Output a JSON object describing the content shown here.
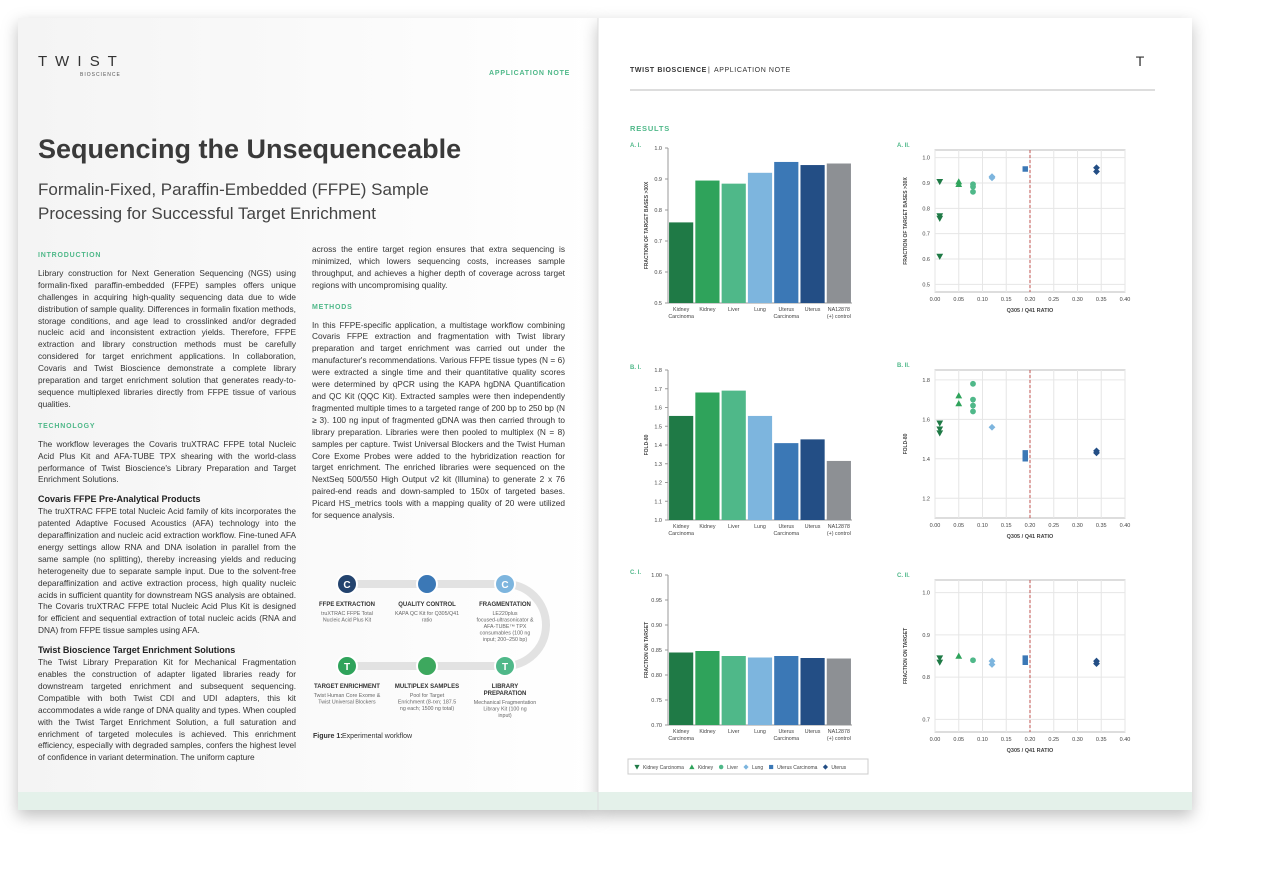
{
  "left_page": {
    "logo": "T W I S T",
    "logo_sub": "BIOSCIENCE",
    "label": "APPLICATION NOTE",
    "title": "Sequencing the Unsequenceable",
    "subtitle_lines": [
      "Formalin-Fixed, Paraffin-Embedded (FFPE) Sample",
      "Processing for Successful Target Enrichment"
    ],
    "columns": [
      [
        {
          "kind": "heading",
          "text": "INTRODUCTION"
        },
        {
          "kind": "text",
          "text": "Library construction for Next Generation Sequencing (NGS) using formalin-fixed paraffin-embedded (FFPE) samples offers unique challenges in acquiring high-quality sequencing data due to wide distribution of sample quality. Differences in formalin fixation methods, storage conditions, and age lead to crosslinked and/or degraded nucleic acid and inconsistent extraction yields. Therefore, FFPE extraction and library construction methods must be carefully considered for target enrichment applications. In collaboration, Covaris and Twist Bioscience demonstrate a complete library preparation and target enrichment solution that generates ready-to-sequence multiplexed libraries directly from FFPE tissue of various qualities."
        },
        {
          "kind": "heading",
          "text": "TECHNOLOGY"
        },
        {
          "kind": "text",
          "text": "The workflow leverages the Covaris truXTRAC FFPE total Nucleic Acid Plus Kit and AFA-TUBE TPX shearing with the world-class performance of Twist Bioscience's Library Preparation and Target Enrichment Solutions."
        },
        {
          "kind": "subheading",
          "text": "Covaris FFPE Pre-Analytical Products"
        },
        {
          "kind": "text",
          "text": "The truXTRAC FFPE total Nucleic Acid family of kits incorporates the patented Adaptive Focused Acoustics (AFA) technology into the deparaffinization and nucleic acid extraction workflow. Fine-tuned AFA energy settings allow RNA and DNA isolation in parallel from the same sample (no splitting), thereby increasing yields and reducing heterogeneity due to separate sample input. Due to the solvent-free deparaffinization and active extraction process, high quality nucleic acids in sufficient quantity for downstream NGS analysis are obtained. The Covaris truXTRAC FFPE total Nucleic Acid Plus Kit is designed for efficient and sequential extraction of total nucleic acids (RNA and DNA) from FFPE tissue samples using AFA."
        },
        {
          "kind": "subheading",
          "text": "Twist Bioscience Target Enrichment Solutions"
        },
        {
          "kind": "text",
          "text": "The Twist Library Preparation Kit for Mechanical Fragmentation enables the construction of adapter ligated libraries ready for downstream targeted enrichment and subsequent sequencing. Compatible with both Twist CDI and UDI adapters, this kit accommodates a wide range of DNA quality and types. When coupled with the Twist Target Enrichment Solution, a full saturation and enrichment of targeted molecules is achieved. This enrichment efficiency, especially with degraded samples, confers the highest level of confidence in variant determination. The uniform capture"
        }
      ],
      [
        {
          "kind": "text",
          "text": "across the entire target region ensures that extra sequencing is minimized, which lowers sequencing costs, increases sample throughput, and achieves a higher depth of coverage across target regions with uncompromising quality."
        },
        {
          "kind": "heading",
          "text": "METHODS"
        },
        {
          "kind": "text",
          "text": "In this FFPE-specific application, a multistage workflow combining Covaris FFPE extraction and fragmentation with Twist library preparation and target enrichment was carried out under the manufacturer's recommendations. Various FFPE tissue types (N = 6) were extracted a single time and their quantitative quality scores were determined by qPCR using the KAPA hgDNA Quantification and QC Kit (QQC Kit). Extracted samples were then independently fragmented multiple times to a targeted range of 200 bp to 250 bp (N ≥ 3). 100 ng input of fragmented gDNA was then carried through to library preparation. Libraries were then pooled to multiplex (N = 8) samples per capture. Twist Universal Blockers and the Twist Human Core Exome Probes were added to the hybridization reaction for target enrichment. The enriched libraries were sequenced on the NextSeq 500/550 High Output v2 kit (Illumina) to generate 2 x 76 paired-end reads and down-sampled to 150x of targeted bases. Picard HS_metrics tools with a mapping quality of 20 were utilized for sequence analysis."
        }
      ]
    ]
  },
  "workflow": {
    "steps": [
      {
        "icon": "C",
        "title": "FFPE EXTRACTION",
        "text": "truXTRAC FFPE Total Nucleic Acid Plus Kit"
      },
      {
        "icon": "",
        "title": "QUALITY CONTROL",
        "text": "KAPA QC Kit for Q305/Q41 ratio"
      },
      {
        "icon": "C",
        "title": "FRAGMENTATION",
        "text": "LE220plus focused-ultrasonicator & AFA-TUBE™ TPX consumables (100 ng input; 200–250 bp)"
      },
      {
        "icon": "T",
        "title": "TARGET ENRICHMENT",
        "text": "Twist Human Core Exome & Twist Universal Blockers"
      },
      {
        "icon": "",
        "title": "MULTIPLEX SAMPLES",
        "text": "Pool for Target Enrichment (8-rxn; 187.5 ng each; 1500 ng total)"
      },
      {
        "icon": "T",
        "title": "LIBRARY PREPARATION",
        "text": "Mechanical Fragmentation Library Kit (100 ng input)"
      }
    ],
    "caption_label": "Figure 1:",
    "caption": "Experimental workflow"
  },
  "right_page": {
    "brand": "TWIST BIOSCIENCE",
    "separator": "|",
    "label": "APPLICATION NOTE",
    "logo": "T",
    "section": "RESULTS"
  },
  "chart_data": [
    {
      "type": "bar",
      "panel": "A. I.",
      "y_label": "FRACTION OF TARGET BASES >30X",
      "categories": [
        "Kidney Carcinoma",
        "Kidney",
        "Liver",
        "Lung",
        "Uterus Carcinoma",
        "Uterus",
        "NA12878 (+) control"
      ],
      "values": [
        0.76,
        0.895,
        0.885,
        0.92,
        0.955,
        0.945,
        0.95
      ],
      "colors": [
        "#1f7a46",
        "#2fa35b",
        "#4fb889",
        "#7db5de",
        "#3b78b6",
        "#234e85",
        "#8d9094"
      ],
      "ylim": [
        0.5,
        1
      ],
      "yticks": [
        0.5,
        0.6,
        0.7,
        0.8,
        0.9,
        {
          "value": 1,
          "label": "1.0"
        }
      ]
    },
    {
      "type": "scatter",
      "panel": "A. II.",
      "x_label": "Q305 / Q41 RATIO",
      "y_label": "FRACTION OF TARGET BASES >30X",
      "xlim": [
        0,
        0.4
      ],
      "xticks": [
        {
          "value": 0,
          "label": "0.00"
        },
        0.05,
        {
          "value": 0.1,
          "label": "0.10"
        },
        0.15,
        {
          "value": 0.2,
          "label": "0.20"
        },
        0.25,
        {
          "value": 0.3,
          "label": "0.30"
        },
        0.35,
        {
          "value": 0.4,
          "label": "0.40"
        }
      ],
      "ylim": [
        0.47,
        1.03
      ],
      "yticks": [
        0.5,
        0.6,
        0.7,
        0.8,
        0.9,
        {
          "value": 1,
          "label": "1.0"
        }
      ],
      "grid": true,
      "threshold_x": 0.2,
      "threshold_color": "#c0504d",
      "series": [
        {
          "name": "Kidney Carcinoma",
          "color": "#1f7a46",
          "marker": "triangle-down",
          "x": [
            0.01,
            0.01,
            0.01,
            0.01
          ],
          "values": [
            0.905,
            0.77,
            0.76,
            0.61
          ]
        },
        {
          "name": "Kidney",
          "color": "#2fa35b",
          "marker": "triangle-up",
          "x": [
            0.05,
            0.05
          ],
          "values": [
            0.905,
            0.895
          ]
        },
        {
          "name": "Liver",
          "color": "#4fb889",
          "marker": "circle",
          "x": [
            0.08,
            0.08,
            0.08
          ],
          "values": [
            0.895,
            0.885,
            0.865
          ]
        },
        {
          "name": "Lung",
          "color": "#7db5de",
          "marker": "diamond",
          "x": [
            0.12,
            0.12
          ],
          "values": [
            0.925,
            0.92
          ]
        },
        {
          "name": "Uterus Carcinoma",
          "color": "#3b78b6",
          "marker": "square",
          "x": [
            0.19
          ],
          "values": [
            0.955
          ]
        },
        {
          "name": "Uterus",
          "color": "#234e85",
          "marker": "diamond",
          "x": [
            0.34,
            0.34
          ],
          "values": [
            0.96,
            0.945
          ]
        }
      ]
    },
    {
      "type": "bar",
      "panel": "B. I.",
      "y_label": "FOLD-80",
      "categories": [
        "Kidney Carcinoma",
        "Kidney",
        "Liver",
        "Lung",
        "Uterus Carcinoma",
        "Uterus",
        "NA12878 (+) control"
      ],
      "values": [
        1.555,
        1.68,
        1.69,
        1.555,
        1.41,
        1.43,
        1.315
      ],
      "colors": [
        "#1f7a46",
        "#2fa35b",
        "#4fb889",
        "#7db5de",
        "#3b78b6",
        "#234e85",
        "#8d9094"
      ],
      "ylim": [
        1,
        1.8
      ],
      "yticks": [
        {
          "value": 1,
          "label": "1.0"
        },
        1.1,
        1.2,
        1.3,
        1.4,
        1.5,
        1.6,
        1.7,
        1.8
      ]
    },
    {
      "type": "scatter",
      "panel": "B. II.",
      "x_label": "Q305 / Q41 RATIO",
      "y_label": "FOLD-80",
      "xlim": [
        0,
        0.4
      ],
      "xticks": [
        {
          "value": 0,
          "label": "0.00"
        },
        0.05,
        {
          "value": 0.1,
          "label": "0.10"
        },
        0.15,
        {
          "value": 0.2,
          "label": "0.20"
        },
        0.25,
        {
          "value": 0.3,
          "label": "0.30"
        },
        0.35,
        {
          "value": 0.4,
          "label": "0.40"
        }
      ],
      "ylim": [
        1.1,
        1.85
      ],
      "yticks": [
        1.2,
        1.4,
        1.6,
        1.8
      ],
      "grid": true,
      "threshold_x": 0.2,
      "threshold_color": "#c0504d",
      "series": [
        {
          "x": [
            0.01,
            0.01,
            0.01
          ],
          "values": [
            1.58,
            1.55,
            1.53
          ]
        },
        {
          "x": [
            0.05,
            0.05
          ],
          "values": [
            1.72,
            1.68
          ]
        },
        {
          "x": [
            0.08,
            0.08,
            0.08,
            0.08
          ],
          "values": [
            1.78,
            1.7,
            1.67,
            1.64
          ]
        },
        {
          "x": [
            0.12
          ],
          "values": [
            1.56
          ]
        },
        {
          "x": [
            0.19,
            0.19,
            0.19
          ],
          "values": [
            1.43,
            1.41,
            1.4
          ]
        },
        {
          "x": [
            0.34,
            0.34
          ],
          "values": [
            1.44,
            1.43
          ]
        }
      ]
    },
    {
      "type": "bar",
      "panel": "C. I.",
      "y_label": "FRACTION ON TARGET",
      "categories": [
        "Kidney Carcinoma",
        "Kidney",
        "Liver",
        "Lung",
        "Uterus Carcinoma",
        "Uterus",
        "NA12878 (+) control"
      ],
      "values": [
        0.845,
        0.848,
        0.838,
        0.835,
        0.838,
        0.834,
        0.833
      ],
      "colors": [
        "#1f7a46",
        "#2fa35b",
        "#4fb889",
        "#7db5de",
        "#3b78b6",
        "#234e85",
        "#8d9094"
      ],
      "ylim": [
        0.7,
        1
      ],
      "yticks": [
        {
          "value": 0.7,
          "label": "0.70"
        },
        0.75,
        {
          "value": 0.8,
          "label": "0.80"
        },
        0.85,
        {
          "value": 0.9,
          "label": "0.90"
        },
        0.95,
        {
          "value": 1,
          "label": "1.00"
        }
      ]
    },
    {
      "type": "scatter",
      "panel": "C. II.",
      "x_label": "Q305 / Q41 RATIO",
      "y_label": "FRACTION ON TARGET",
      "xlim": [
        0,
        0.4
      ],
      "xticks": [
        {
          "value": 0,
          "label": "0.00"
        },
        0.05,
        {
          "value": 0.1,
          "label": "0.10"
        },
        0.15,
        {
          "value": 0.2,
          "label": "0.20"
        },
        0.25,
        {
          "value": 0.3,
          "label": "0.30"
        },
        0.35,
        {
          "value": 0.4,
          "label": "0.40"
        }
      ],
      "ylim": [
        0.67,
        1.03
      ],
      "yticks": [
        0.7,
        0.8,
        0.9,
        {
          "value": 1,
          "label": "1.0"
        }
      ],
      "grid": true,
      "threshold_x": 0.2,
      "threshold_color": "#c0504d",
      "series": [
        {
          "x": [
            0.01,
            0.01
          ],
          "values": [
            0.845,
            0.835
          ]
        },
        {
          "x": [
            0.05
          ],
          "values": [
            0.85
          ]
        },
        {
          "x": [
            0.08
          ],
          "values": [
            0.84
          ]
        },
        {
          "x": [
            0.12,
            0.12
          ],
          "values": [
            0.838,
            0.83
          ]
        },
        {
          "x": [
            0.19,
            0.19
          ],
          "values": [
            0.845,
            0.835
          ]
        },
        {
          "x": [
            0.34,
            0.34
          ],
          "values": [
            0.838,
            0.832
          ]
        }
      ]
    }
  ]
}
